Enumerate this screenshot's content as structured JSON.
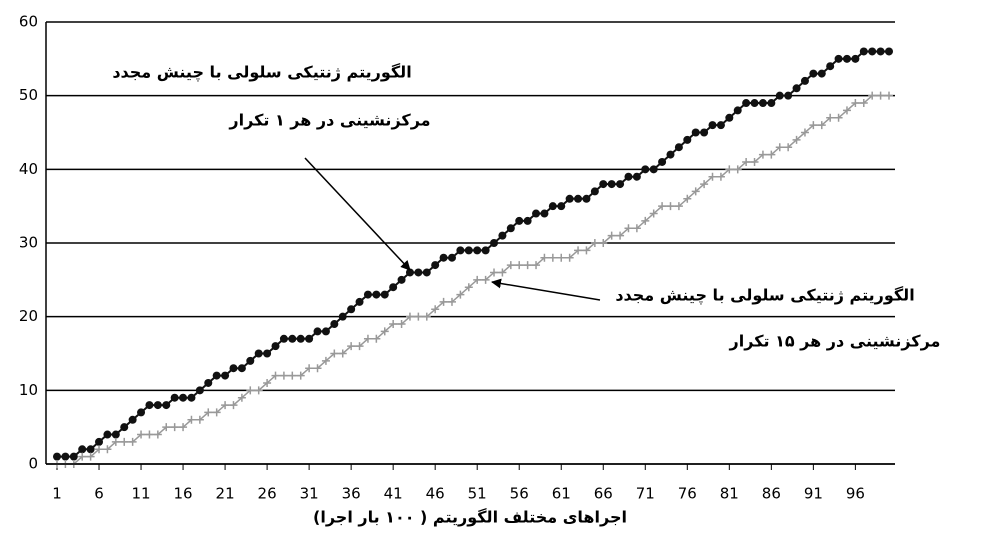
{
  "chart_data": {
    "type": "line",
    "x_label": "اجراهای مختلف الگوریتم ( ۱۰۰ بار اجرا)",
    "annotations": [
      {
        "lines": [
          "الگوریتم ژنتیکی سلولی با چینش مجدد",
          "مرکزنشینی در هر ۱ تکرار"
        ]
      },
      {
        "lines": [
          "الگوریتم ژنتیکی سلولی با چینش مجدد",
          "مرکزنشینی در هر ۱۵ تکرار"
        ]
      }
    ],
    "x": [
      1,
      2,
      3,
      4,
      5,
      6,
      7,
      8,
      9,
      10,
      11,
      12,
      13,
      14,
      15,
      16,
      17,
      18,
      19,
      20,
      21,
      22,
      23,
      24,
      25,
      26,
      27,
      28,
      29,
      30,
      31,
      32,
      33,
      34,
      35,
      36,
      37,
      38,
      39,
      40,
      41,
      42,
      43,
      44,
      45,
      46,
      47,
      48,
      49,
      50,
      51,
      52,
      53,
      54,
      55,
      56,
      57,
      58,
      59,
      60,
      61,
      62,
      63,
      64,
      65,
      66,
      67,
      68,
      69,
      70,
      71,
      72,
      73,
      74,
      75,
      76,
      77,
      78,
      79,
      80,
      81,
      82,
      83,
      84,
      85,
      86,
      87,
      88,
      89,
      90,
      91,
      92,
      93,
      94,
      95,
      96,
      97,
      98,
      99,
      100
    ],
    "series": [
      {
        "color": "#111111",
        "marker": "circle",
        "values": [
          1,
          1,
          1,
          2,
          2,
          3,
          4,
          4,
          5,
          6,
          7,
          8,
          8,
          8,
          9,
          9,
          9,
          10,
          11,
          12,
          12,
          13,
          13,
          14,
          15,
          15,
          16,
          17,
          17,
          17,
          17,
          18,
          18,
          19,
          20,
          21,
          22,
          23,
          23,
          23,
          24,
          25,
          26,
          26,
          26,
          27,
          28,
          28,
          29,
          29,
          29,
          29,
          30,
          31,
          32,
          33,
          33,
          34,
          34,
          35,
          35,
          36,
          36,
          36,
          37,
          38,
          38,
          38,
          39,
          39,
          40,
          40,
          41,
          42,
          43,
          44,
          45,
          45,
          46,
          46,
          47,
          48,
          49,
          49,
          49,
          49,
          50,
          50,
          51,
          52,
          53,
          53,
          54,
          55,
          55,
          55,
          56,
          56,
          56,
          56
        ]
      },
      {
        "color": "#999999",
        "marker": "plus",
        "values": [
          0,
          0,
          0,
          1,
          1,
          2,
          2,
          3,
          3,
          3,
          4,
          4,
          4,
          5,
          5,
          5,
          6,
          6,
          7,
          7,
          8,
          8,
          9,
          10,
          10,
          11,
          12,
          12,
          12,
          12,
          13,
          13,
          14,
          15,
          15,
          16,
          16,
          17,
          17,
          18,
          19,
          19,
          20,
          20,
          20,
          21,
          22,
          22,
          23,
          24,
          25,
          25,
          26,
          26,
          27,
          27,
          27,
          27,
          28,
          28,
          28,
          28,
          29,
          29,
          30,
          30,
          31,
          31,
          32,
          32,
          33,
          34,
          35,
          35,
          35,
          36,
          37,
          38,
          39,
          39,
          40,
          40,
          41,
          41,
          42,
          42,
          43,
          43,
          44,
          45,
          46,
          46,
          47,
          47,
          48,
          49,
          49,
          50,
          50,
          50
        ]
      }
    ],
    "xlim": [
      1,
      100
    ],
    "xticks": [
      1,
      6,
      11,
      16,
      21,
      26,
      31,
      36,
      41,
      46,
      51,
      56,
      61,
      66,
      71,
      76,
      81,
      86,
      91,
      96
    ],
    "ylim": [
      0,
      60
    ],
    "yticks": [
      0,
      10,
      20,
      30,
      40,
      50,
      60
    ],
    "grid": true
  }
}
